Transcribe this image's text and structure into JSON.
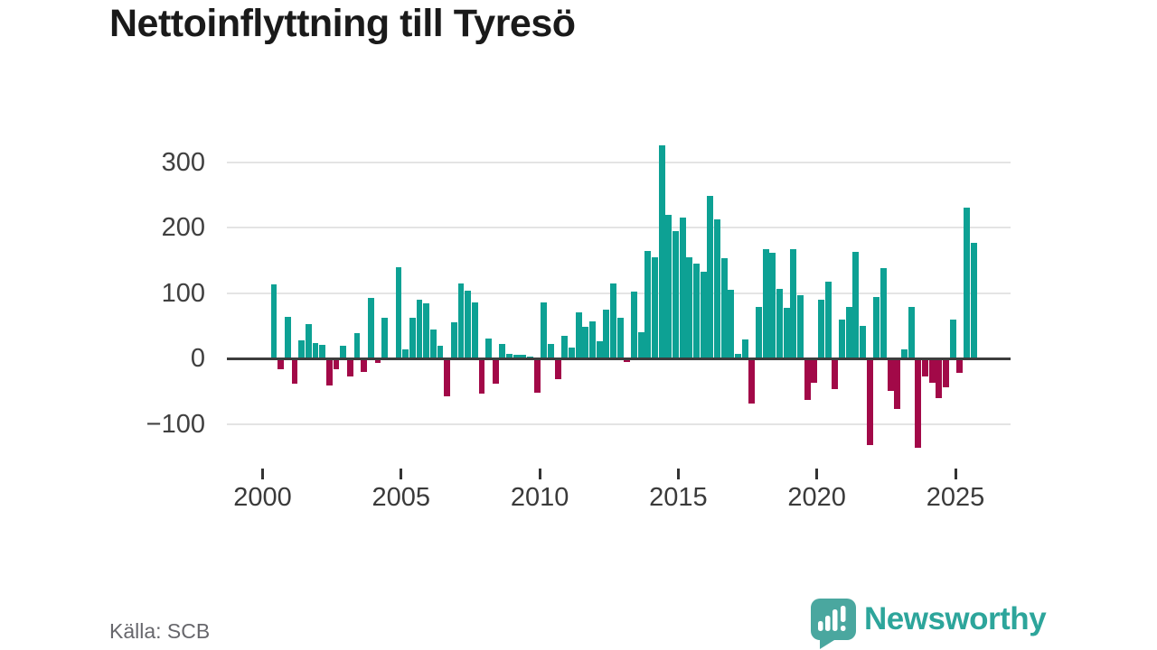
{
  "title": "Nettoinflyttning till Tyresö",
  "source": "Källa: SCB",
  "branding": {
    "wordmark": "Newsworthy"
  },
  "colors": {
    "positive_bar": "#0da194",
    "negative_bar": "#a20948",
    "axis": "#3d3d3d",
    "gridline": "#e4e4e4",
    "brand_teal": "#2da59b",
    "brand_icon_teal": "#4aa79f"
  },
  "chart_data": {
    "type": "bar",
    "title": "Nettoinflyttning till Tyresö",
    "xlabel": "",
    "ylabel": "",
    "grid": true,
    "legend": false,
    "ylim": [
      -150,
      340
    ],
    "yticks": [
      300,
      200,
      100,
      0,
      -100
    ],
    "ytick_labels": [
      "300",
      "200",
      "100",
      "0",
      "−100"
    ],
    "xticks": [
      "2000",
      "2005",
      "2010",
      "2015",
      "2020",
      "2025"
    ],
    "x": [
      "2000 Q2",
      "2000 Q3",
      "2000 Q4",
      "2001 Q1",
      "2001 Q2",
      "2001 Q3",
      "2001 Q4",
      "2002 Q1",
      "2002 Q2",
      "2002 Q3",
      "2002 Q4",
      "2003 Q1",
      "2003 Q2",
      "2003 Q3",
      "2003 Q4",
      "2004 Q1",
      "2004 Q2",
      "2004 Q3",
      "2004 Q4",
      "2005 Q1",
      "2005 Q2",
      "2005 Q3",
      "2005 Q4",
      "2006 Q1",
      "2006 Q2",
      "2006 Q3",
      "2006 Q4",
      "2007 Q1",
      "2007 Q2",
      "2007 Q3",
      "2007 Q4",
      "2008 Q1",
      "2008 Q2",
      "2008 Q3",
      "2008 Q4",
      "2009 Q1",
      "2009 Q2",
      "2009 Q3",
      "2009 Q4",
      "2010 Q1",
      "2010 Q2",
      "2010 Q3",
      "2010 Q4",
      "2011 Q1",
      "2011 Q2",
      "2011 Q3",
      "2011 Q4",
      "2012 Q1",
      "2012 Q2",
      "2012 Q3",
      "2012 Q4",
      "2013 Q1",
      "2013 Q2",
      "2013 Q3",
      "2013 Q4",
      "2014 Q1",
      "2014 Q2",
      "2014 Q3",
      "2014 Q4",
      "2015 Q1",
      "2015 Q2",
      "2015 Q3",
      "2015 Q4",
      "2016 Q1",
      "2016 Q2",
      "2016 Q3",
      "2016 Q4",
      "2017 Q1",
      "2017 Q2",
      "2017 Q3",
      "2017 Q4",
      "2018 Q1",
      "2018 Q2",
      "2018 Q3",
      "2018 Q4",
      "2019 Q1",
      "2019 Q2",
      "2019 Q3",
      "2019 Q4",
      "2020 Q1",
      "2020 Q2",
      "2020 Q3",
      "2020 Q4",
      "2021 Q1",
      "2021 Q2",
      "2021 Q3",
      "2021 Q4",
      "2022 Q1",
      "2022 Q2",
      "2022 Q3",
      "2022 Q4",
      "2023 Q1",
      "2023 Q2",
      "2023 Q3",
      "2023 Q4",
      "2024 Q1",
      "2024 Q2",
      "2024 Q3",
      "2024 Q4",
      "2025 Q1",
      "2025 Q2",
      "2025 Q3"
    ],
    "values": [
      113,
      -17,
      63,
      -39,
      28,
      52,
      23,
      21,
      -42,
      -17,
      20,
      -27,
      38,
      -20,
      92,
      -7,
      62,
      0,
      139,
      14,
      62,
      90,
      84,
      44,
      19,
      -58,
      55,
      114,
      103,
      85,
      -54,
      30,
      -38,
      22,
      7,
      6,
      5,
      3,
      -53,
      86,
      22,
      -32,
      35,
      17,
      70,
      48,
      57,
      26,
      74,
      114,
      62,
      -5,
      102,
      40,
      164,
      154,
      326,
      220,
      195,
      215,
      155,
      145,
      133,
      248,
      213,
      153,
      105,
      7,
      29,
      -69,
      78,
      167,
      161,
      106,
      77,
      167,
      97,
      -63,
      -37,
      90,
      117,
      -47,
      60,
      78,
      163,
      50,
      -133,
      94,
      138,
      -50,
      -77,
      14,
      79,
      -136,
      -27,
      -37,
      -60,
      -44,
      59,
      -22,
      230,
      177
    ]
  }
}
